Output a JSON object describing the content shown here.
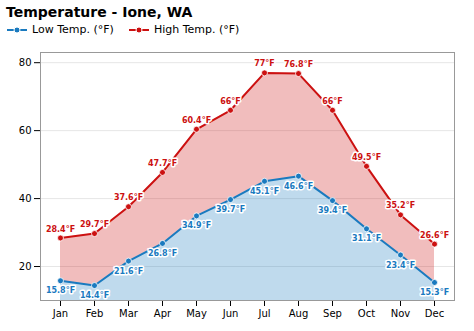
{
  "chart_data": {
    "type": "line",
    "title": "Temperature - Ione, WA",
    "categories": [
      "Jan",
      "Feb",
      "Mar",
      "Apr",
      "May",
      "Jun",
      "Jul",
      "Aug",
      "Sep",
      "Oct",
      "Nov",
      "Dec"
    ],
    "series": [
      {
        "name": "Low Temp. (°F)",
        "color": "#1a7abf",
        "marker": "circle",
        "values": [
          15.8,
          14.4,
          21.6,
          26.8,
          34.9,
          39.7,
          45.1,
          46.6,
          39.4,
          31.1,
          23.4,
          15.3
        ],
        "value_labels": [
          "15.8°F",
          "14.4°F",
          "21.6°F",
          "26.8°F",
          "34.9°F",
          "39.7°F",
          "45.1°F",
          "46.6°F",
          "39.4°F",
          "31.1°F",
          "23.4°F",
          "15.3°F"
        ]
      },
      {
        "name": "High Temp. (°F)",
        "color": "#cc1111",
        "marker": "circle",
        "values": [
          28.4,
          29.7,
          37.6,
          47.7,
          60.4,
          66.0,
          77.0,
          76.8,
          66.0,
          49.5,
          35.2,
          26.6
        ],
        "value_labels": [
          "28.4°F",
          "29.7°F",
          "37.6°F",
          "47.7°F",
          "60.4°F",
          "66°F",
          "77°F",
          "76.8°F",
          "66°F",
          "49.5°F",
          "35.2°F",
          "26.6°F"
        ]
      }
    ],
    "ylim": [
      10,
      83
    ],
    "yticks": [
      20,
      40,
      60,
      80
    ],
    "grid": true,
    "legend": "top-left",
    "data_labels": true
  }
}
